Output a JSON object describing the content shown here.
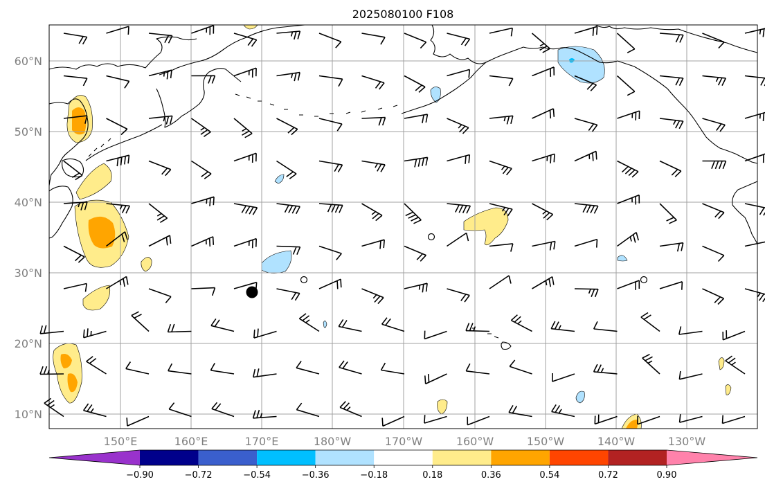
{
  "title": "2025080100 F108",
  "colors": {
    "neg090": "#9932cc",
    "neg072": "#00008b",
    "neg054": "#3a5fcd",
    "neg036": "#00bfff",
    "neg018": "#b0e2ff",
    "neutral": "#ffffff",
    "pos018": "#ffec8b",
    "pos036": "#ffa500",
    "pos054": "#ff4500",
    "pos072": "#b22222",
    "pos090": "#ff82ab"
  },
  "chart_data": {
    "type": "map",
    "title": "2025080100 F108",
    "lon_ticks": [
      "150°E",
      "160°E",
      "170°E",
      "180°W",
      "170°W",
      "160°W",
      "150°W",
      "140°W",
      "130°W"
    ],
    "lat_ticks": [
      "10°N",
      "20°N",
      "30°N",
      "40°N",
      "50°N",
      "60°N"
    ],
    "grid": true,
    "colorbar": {
      "levels": [
        "−0.90",
        "−0.72",
        "−0.54",
        "−0.36",
        "−0.18",
        "0.18",
        "0.36",
        "0.54",
        "0.72",
        "0.90"
      ],
      "extend": "both",
      "colors": [
        "#9932cc",
        "#00008b",
        "#3a5fcd",
        "#00bfff",
        "#b0e2ff",
        "#ffffff",
        "#ffec8b",
        "#ffa500",
        "#ff4500",
        "#b22222",
        "#ff82ab"
      ]
    },
    "marker": {
      "lon": 171.5,
      "lat": 27.5,
      "label": ""
    }
  }
}
